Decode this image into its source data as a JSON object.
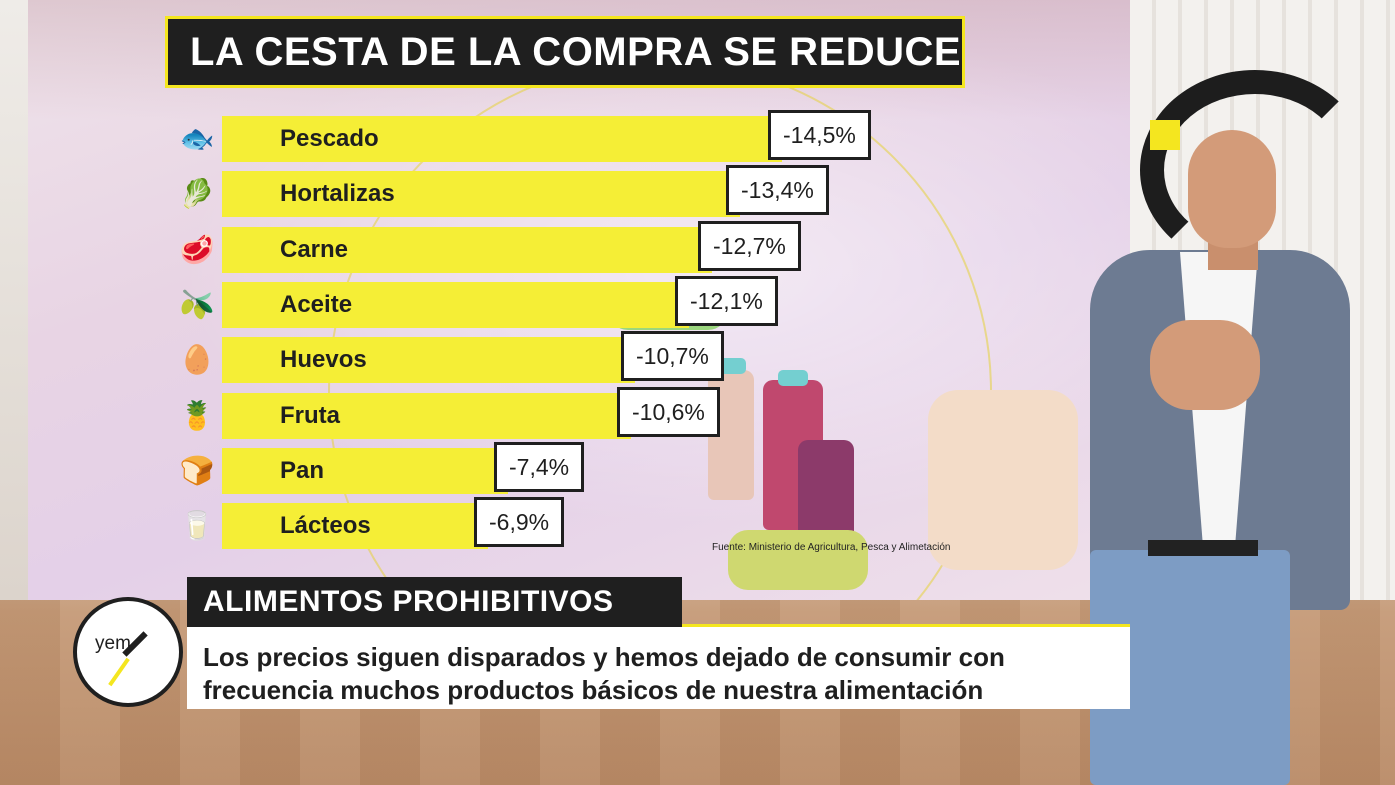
{
  "graphic": {
    "title": "LA CESTA DE LA COMPRA SE REDUCE",
    "source": "Fuente: Ministerio de Agricultura, Pesca y Alimetación",
    "accent_color": "#f5ee36",
    "items": [
      {
        "label": "Pescado",
        "value": "-14,5%",
        "pct": 14.5,
        "icon": "fish-icon",
        "glyph": "🐟"
      },
      {
        "label": "Hortalizas",
        "value": "-13,4%",
        "pct": 13.4,
        "icon": "vegetables-icon",
        "glyph": "🥬"
      },
      {
        "label": "Carne",
        "value": "-12,7%",
        "pct": 12.7,
        "icon": "meat-icon",
        "glyph": "🥩"
      },
      {
        "label": "Aceite",
        "value": "-12,1%",
        "pct": 12.1,
        "icon": "oil-bottle-icon",
        "glyph": "🫒"
      },
      {
        "label": "Huevos",
        "value": "-10,7%",
        "pct": 10.7,
        "icon": "eggs-icon",
        "glyph": "🥚"
      },
      {
        "label": "Fruta",
        "value": "-10,6%",
        "pct": 10.6,
        "icon": "fruit-icon",
        "glyph": "🍍"
      },
      {
        "label": "Pan",
        "value": "-7,4%",
        "pct": 7.4,
        "icon": "bread-icon",
        "glyph": "🍞"
      },
      {
        "label": "Lácteos",
        "value": "-6,9%",
        "pct": 6.9,
        "icon": "dairy-icon",
        "glyph": "🥛"
      }
    ]
  },
  "lower_third": {
    "headline": "ALIMENTOS PROHIBITIVOS",
    "line1": "Los precios siguen disparados y hemos dejado de consumir con",
    "line2": "frecuencia muchos productos básicos de nuestra alimentación"
  },
  "logo": {
    "text": "yem",
    "icon": "channel-logo-icon"
  }
}
